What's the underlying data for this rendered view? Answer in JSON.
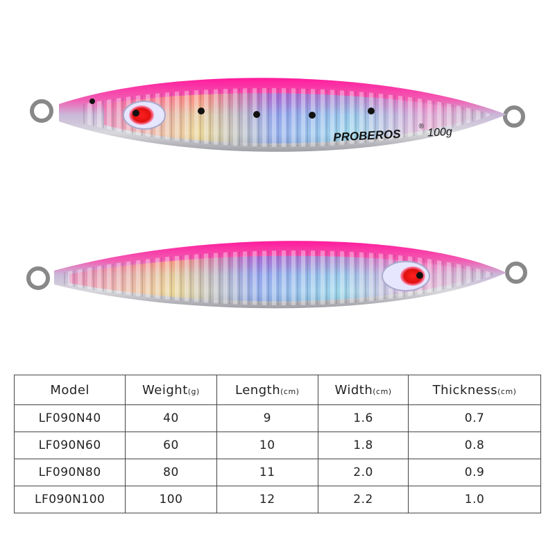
{
  "lure_top": {
    "brand": "PROBEROS",
    "mark": "®",
    "weight": "100g"
  },
  "table": {
    "headers": [
      {
        "label": "Model"
      },
      {
        "label": "Weight",
        "unit": "(g)"
      },
      {
        "label": "Length",
        "unit": "(cm)"
      },
      {
        "label": "Width",
        "unit": "(cm)"
      },
      {
        "label": "Thickness",
        "unit": "(cm)"
      }
    ],
    "rows": [
      [
        "LF090N40",
        "40",
        "9",
        "1.6",
        "0.7"
      ],
      [
        "LF090N60",
        "60",
        "10",
        "1.8",
        "0.8"
      ],
      [
        "LF090N80",
        "80",
        "11",
        "2.0",
        "0.9"
      ],
      [
        "LF090N100",
        "100",
        "12",
        "2.2",
        "1.0"
      ]
    ]
  }
}
